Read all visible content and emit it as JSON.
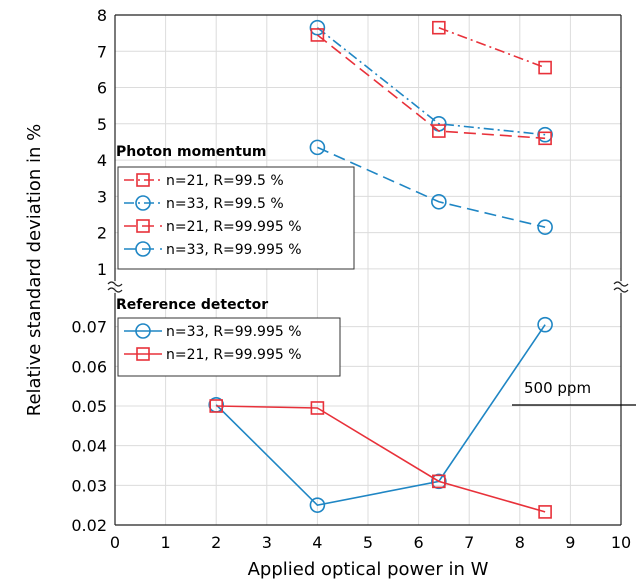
{
  "chart_data": [
    {
      "type": "line",
      "panel": "top",
      "xlim": [
        0,
        10
      ],
      "ylim": [
        0.5,
        8
      ],
      "yticks": [
        "1",
        "2",
        "3",
        "4",
        "5",
        "6",
        "7",
        "8"
      ],
      "grid": true,
      "legend_title": "Photon momentum",
      "legend_placement": "middle-left",
      "series": [
        {
          "name": "n=21, R=99.5 %",
          "color": "#e8313a",
          "marker": "square",
          "dash": "dashdot",
          "x": [
            6.4,
            8.5
          ],
          "y": [
            7.65,
            6.55
          ]
        },
        {
          "name": "n=33, R=99.5 %",
          "color": "#1f86c4",
          "marker": "circle",
          "dash": "dashdot",
          "x": [
            4,
            6.4,
            8.5
          ],
          "y": [
            7.65,
            5.0,
            4.7
          ]
        },
        {
          "name": "n=21, R=99.995 %",
          "color": "#e8313a",
          "marker": "square",
          "dash": "longdash",
          "x": [
            4,
            6.4,
            8.5
          ],
          "y": [
            7.45,
            4.8,
            4.6
          ]
        },
        {
          "name": "n=33, R=99.995 %",
          "color": "#1f86c4",
          "marker": "circle",
          "dash": "longdash",
          "x": [
            4,
            6.4,
            8.5
          ],
          "y": [
            4.35,
            2.85,
            2.15
          ]
        }
      ]
    },
    {
      "type": "line",
      "panel": "bottom",
      "xlim": [
        0,
        10
      ],
      "ylim": [
        0.02,
        0.08
      ],
      "yticks": [
        "0.02",
        "0.03",
        "0.04",
        "0.05",
        "0.06",
        "0.07"
      ],
      "xticks": [
        "0",
        "1",
        "2",
        "3",
        "4",
        "5",
        "6",
        "7",
        "8",
        "9",
        "10"
      ],
      "grid": true,
      "legend_title": "Reference detector",
      "legend_placement": "top-left",
      "series": [
        {
          "name": "n=33, R=99.995 %",
          "color": "#1f86c4",
          "marker": "circle",
          "dash": "solid",
          "x": [
            2,
            4,
            6.4,
            8.5
          ],
          "y": [
            0.0503,
            0.025,
            0.031,
            0.0705
          ]
        },
        {
          "name": "n=21, R=99.995 %",
          "color": "#e8313a",
          "marker": "square",
          "dash": "solid",
          "x": [
            2,
            4,
            6.4,
            8.5
          ],
          "y": [
            0.05,
            0.0495,
            0.031,
            0.0233
          ]
        }
      ]
    }
  ],
  "axes": {
    "xlabel": "Applied optical power in W",
    "ylabel": "Relative standard deviation in %"
  },
  "annotation": {
    "text": "500 ppm",
    "y": 0.05
  }
}
